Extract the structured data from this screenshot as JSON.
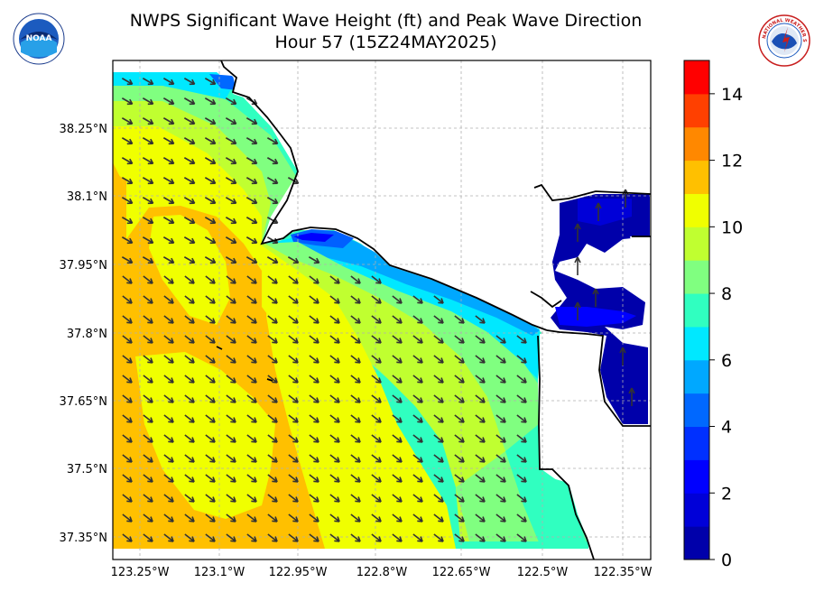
{
  "title": {
    "line1": "NWPS Significant Wave Height (ft) and Peak Wave Direction",
    "line2": "Hour 57 (15Z24MAY2025)"
  },
  "logos": {
    "left": {
      "icon": "noaa-logo",
      "text": "NOAA"
    },
    "right": {
      "icon": "nws-logo",
      "text": "NATIONAL WEATHER SERVICE"
    }
  },
  "axes": {
    "lat_ticks": [
      "38.25°N",
      "38.1°N",
      "37.95°N",
      "37.8°N",
      "37.65°N",
      "37.5°N",
      "37.35°N"
    ],
    "lon_ticks": [
      "123.25°W",
      "123.1°W",
      "122.95°W",
      "122.8°W",
      "122.65°W",
      "122.5°W",
      "122.35°W"
    ],
    "grid": true
  },
  "colorbar": {
    "ticks": [
      "0",
      "2",
      "4",
      "6",
      "8",
      "10",
      "12",
      "14"
    ],
    "min": 0,
    "max": 15,
    "step": 1,
    "colors": [
      "#0000aa",
      "#0000d8",
      "#0000ff",
      "#0030ff",
      "#0068ff",
      "#00a8ff",
      "#00e8ff",
      "#30ffc0",
      "#80ff80",
      "#c0ff30",
      "#f0ff00",
      "#ffc000",
      "#ff8800",
      "#ff4000",
      "#ff0000",
      "#a80000"
    ]
  },
  "legend_colors": {
    "land": "#ffffff",
    "coast": "#000000",
    "arrow": "#333333"
  }
}
